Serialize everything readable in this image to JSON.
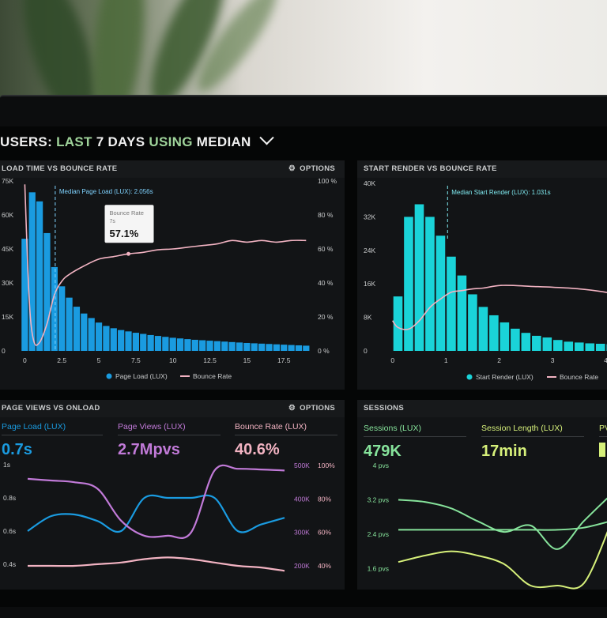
{
  "header": {
    "title_users": "USERS:",
    "title_last": "LAST",
    "title_days": "7 DAYS",
    "title_using": "USING",
    "title_median": "MEDIAN"
  },
  "panels": {
    "load_time": {
      "title": "LOAD TIME VS BOUNCE RATE",
      "options_label": "OPTIONS",
      "median_label": "Median Page Load (LUX): 2.056s",
      "tooltip": {
        "title": "Bounce Rate",
        "sub": "7s",
        "value": "57.1%"
      },
      "legend": [
        "Page Load (LUX)",
        "Bounce Rate"
      ]
    },
    "start_render": {
      "title": "START RENDER VS BOUNCE RATE",
      "median_label": "Median Start Render (LUX): 1.031s",
      "legend": [
        "Start Render (LUX)",
        "Bounce Rate"
      ]
    },
    "page_views": {
      "title": "PAGE VIEWS VS ONLOAD",
      "options_label": "OPTIONS",
      "stats": [
        {
          "label": "Page Load (LUX)",
          "value": "0.7s"
        },
        {
          "label": "Page Views (LUX)",
          "value": "2.7Mpvs"
        },
        {
          "label": "Bounce Rate (LUX)",
          "value": "40.6%"
        }
      ]
    },
    "sessions": {
      "title": "SESSIONS",
      "stats": [
        {
          "label": "Sessions (LUX)",
          "value": "479K"
        },
        {
          "label": "Session Length (LUX)",
          "value": "17min"
        },
        {
          "label": "PV",
          "value": ""
        }
      ]
    }
  },
  "colors": {
    "blue": "#1a9be0",
    "cyan": "#1ad3d8",
    "pink": "#f2b3c2",
    "purple": "#c17ad8",
    "green": "#86e39b",
    "lime": "#d6f07a",
    "label": "#c9cbcc"
  },
  "chart_data": [
    {
      "type": "bar",
      "title": "LOAD TIME VS BOUNCE RATE",
      "x_ticks": [
        "0",
        "2.5",
        "5",
        "7.5",
        "10",
        "12.5",
        "15",
        "17.5"
      ],
      "xlim": [
        -0.5,
        19.25
      ],
      "y_ticks_left": [
        "0",
        "15K",
        "30K",
        "45K",
        "60K",
        "75K"
      ],
      "ylim_left": [
        0,
        75000
      ],
      "y_ticks_right": [
        "0 %",
        "20 %",
        "40 %",
        "60 %",
        "80 %",
        "100 %"
      ],
      "ylim_right": [
        0,
        100
      ],
      "bar_width": 0.5,
      "series": [
        {
          "name": "Page Load (LUX)",
          "type": "bar",
          "color": "#1a9be0",
          "x": [
            0,
            0.5,
            1,
            1.5,
            2,
            2.5,
            3,
            3.5,
            4,
            4.5,
            5,
            5.5,
            6,
            6.5,
            7,
            7.5,
            8,
            8.5,
            9,
            9.5,
            10,
            10.5,
            11,
            11.5,
            12,
            12.5,
            13,
            13.5,
            14,
            14.5,
            15,
            15.5,
            16,
            16.5,
            17,
            17.5,
            18,
            18.5,
            19
          ],
          "values": [
            49500,
            70000,
            66000,
            52000,
            37000,
            28500,
            23500,
            19500,
            16500,
            14500,
            12500,
            11000,
            10000,
            9200,
            8600,
            8000,
            7500,
            7000,
            6600,
            6200,
            5800,
            5500,
            5200,
            4900,
            4700,
            4500,
            4300,
            4100,
            3900,
            3700,
            3500,
            3350,
            3200,
            3050,
            2900,
            2750,
            2600,
            2450,
            2300
          ]
        },
        {
          "name": "Bounce Rate",
          "type": "line",
          "color": "#f2b3c2",
          "axis": "right",
          "x": [
            0,
            0.3,
            0.6,
            1,
            1.5,
            2,
            2.5,
            3,
            4,
            5,
            6,
            7,
            8,
            9,
            10,
            11,
            12,
            13,
            14,
            15,
            16,
            17,
            18,
            19
          ],
          "values": [
            98,
            30,
            6,
            5,
            16,
            33,
            41,
            45,
            50,
            54,
            55.5,
            57.1,
            58,
            59.5,
            60,
            61,
            62,
            63,
            65,
            64,
            65,
            64,
            65,
            65
          ]
        }
      ],
      "annotations": [
        "Median Page Load (LUX): 2.056s",
        "Bounce Rate 7s 57.1%"
      ],
      "median_x": 2.056,
      "legend": "bottom"
    },
    {
      "type": "bar",
      "title": "START RENDER VS BOUNCE RATE",
      "x_ticks": [
        "0",
        "1",
        "2",
        "3",
        "4"
      ],
      "xlim": [
        -0.1,
        4.2
      ],
      "y_ticks_left": [
        "0",
        "8K",
        "16K",
        "24K",
        "32K",
        "40K"
      ],
      "ylim_left": [
        0,
        40000
      ],
      "ylim_right": [
        0,
        100
      ],
      "bar_width": 0.2,
      "series": [
        {
          "name": "Start Render (LUX)",
          "type": "bar",
          "color": "#1ad3d8",
          "x": [
            0.1,
            0.3,
            0.5,
            0.7,
            0.9,
            1.1,
            1.3,
            1.5,
            1.7,
            1.9,
            2.1,
            2.3,
            2.5,
            2.7,
            2.9,
            3.1,
            3.3,
            3.5,
            3.7,
            3.9,
            4.1
          ],
          "values": [
            13000,
            32000,
            35000,
            32000,
            27500,
            22500,
            18000,
            13500,
            10500,
            8500,
            6800,
            5300,
            4300,
            3600,
            3200,
            2600,
            2200,
            2000,
            1800,
            1700,
            1600
          ]
        },
        {
          "name": "Bounce Rate",
          "type": "line",
          "color": "#f2b3c2",
          "axis": "right",
          "x": [
            0,
            0.1,
            0.3,
            0.5,
            0.7,
            0.9,
            1.1,
            1.3,
            1.5,
            1.7,
            2,
            2.3,
            2.6,
            3,
            3.5,
            4,
            4.1,
            4.2
          ],
          "values": [
            18,
            14,
            13,
            18,
            26,
            31,
            35,
            36,
            37,
            37.5,
            39,
            39,
            38.5,
            38,
            37,
            35,
            34,
            35
          ]
        }
      ],
      "annotations": [
        "Median Start Render (LUX): 1.031s"
      ],
      "median_x": 1.031,
      "legend": "bottom"
    },
    {
      "type": "line",
      "title": "PAGE VIEWS VS ONLOAD",
      "y_ticks_left": [
        "0.4s",
        "0.6s",
        "0.8s",
        "1s"
      ],
      "ylim_left": [
        0.4,
        1.0
      ],
      "y_ticks_right_1": [
        "200K",
        "300K",
        "400K",
        "500K"
      ],
      "ylim_right_1": [
        200000,
        500000
      ],
      "y_ticks_right_2": [
        "40%",
        "60%",
        "80%",
        "100%"
      ],
      "ylim_right_2": [
        40,
        100
      ],
      "x": [
        0,
        1,
        2,
        3,
        4,
        5,
        6,
        7,
        8,
        9,
        10,
        11
      ],
      "series": [
        {
          "name": "Page Load (LUX)",
          "color": "#1a9be0",
          "axis": "left",
          "values": [
            0.6,
            0.69,
            0.7,
            0.66,
            0.6,
            0.8,
            0.8,
            0.8,
            0.8,
            0.6,
            0.64,
            0.68
          ]
        },
        {
          "name": "Page Views (LUX)",
          "color": "#c17ad8",
          "axis": "right_1",
          "values": [
            460000,
            455000,
            450000,
            430000,
            335000,
            290000,
            290000,
            300000,
            485000,
            490000,
            488000,
            485000
          ]
        },
        {
          "name": "Bounce Rate (LUX)",
          "color": "#f2b3c2",
          "axis": "right_2",
          "values": [
            40,
            40,
            40,
            41,
            42,
            44,
            45,
            44,
            42,
            40,
            39,
            37
          ]
        }
      ]
    },
    {
      "type": "line",
      "title": "SESSIONS",
      "y_ticks_left": [
        "1.6 pvs",
        "2.4 pvs",
        "3.2 pvs",
        "4 pvs"
      ],
      "ylim_left": [
        1.2,
        4.0
      ],
      "x": [
        0,
        1,
        2,
        3,
        4,
        5,
        6,
        7,
        8
      ],
      "series": [
        {
          "name": "Sessions (LUX)",
          "color": "#86e39b",
          "values": [
            3.2,
            3.15,
            3.0,
            2.7,
            2.45,
            2.6,
            2.05,
            2.7,
            3.3
          ]
        },
        {
          "name": "Session Length (LUX)",
          "color": "#d6f07a",
          "values": [
            1.75,
            1.9,
            2.0,
            1.9,
            1.7,
            1.2,
            1.2,
            1.25,
            2.6
          ]
        },
        {
          "name": "PV",
          "color": "#86e39b",
          "values": [
            2.5,
            2.5,
            2.5,
            2.5,
            2.5,
            2.5,
            2.5,
            2.55,
            2.7
          ]
        }
      ]
    }
  ]
}
